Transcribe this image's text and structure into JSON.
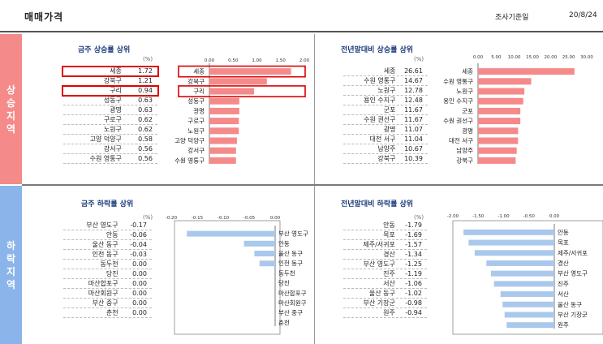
{
  "header": {
    "title": "매매가격",
    "date_label": "조사기준일",
    "date_value": "20/8/24"
  },
  "sections": {
    "rise": "상승지역",
    "fall": "하락지역"
  },
  "unit": "(%)",
  "chart_data": [
    {
      "id": "p1",
      "type": "bar",
      "title": "금주 상승률 상위",
      "categories": [
        "세종",
        "강북구",
        "구리",
        "성동구",
        "광명",
        "구로구",
        "노원구",
        "고양 덕양구",
        "강서구",
        "수원 영통구"
      ],
      "values": [
        1.72,
        1.21,
        0.94,
        0.63,
        0.63,
        0.62,
        0.62,
        0.58,
        0.56,
        0.56
      ],
      "value_labels": [
        "1.72",
        "1.21",
        "0.94",
        "0.63",
        "0.63",
        "0.62",
        "0.62",
        "0.58",
        "0.56",
        "0.56"
      ],
      "xlim": [
        0,
        2
      ],
      "xticks": [
        "0.00",
        "0.50",
        "1.00",
        "1.50",
        "2.00"
      ],
      "highlight": [
        0,
        2
      ],
      "color": "#f58a8a"
    },
    {
      "id": "p2",
      "type": "bar",
      "title": "전년말대비 상승률 상위",
      "categories": [
        "세종",
        "수원 영통구",
        "노원구",
        "용인 수지구",
        "군포",
        "수원 권선구",
        "광명",
        "대전 서구",
        "남양주",
        "강북구"
      ],
      "values": [
        26.61,
        14.67,
        12.78,
        12.48,
        11.67,
        11.67,
        11.07,
        11.04,
        10.67,
        10.39
      ],
      "value_labels": [
        "26.61",
        "14.67",
        "12.78",
        "12.48",
        "11.67",
        "11.67",
        "11.07",
        "11.04",
        "10.67",
        "10.39"
      ],
      "xlim": [
        0,
        30
      ],
      "xticks": [
        "0.00",
        "5.00",
        "10.00",
        "15.00",
        "20.00",
        "25.00",
        "30.00"
      ],
      "highlight": [],
      "color": "#f58a8a"
    },
    {
      "id": "p3",
      "type": "bar",
      "title": "금주 하락률 상위",
      "categories": [
        "부산 영도구",
        "안동",
        "울산 동구",
        "인천 동구",
        "동두천",
        "당진",
        "마산합포구",
        "마산회원구",
        "부산 중구",
        "춘천"
      ],
      "values": [
        -0.17,
        -0.06,
        -0.04,
        -0.03,
        0.0,
        0.0,
        0.0,
        0.0,
        0.0,
        0.0
      ],
      "value_labels": [
        "-0.17",
        "-0.06",
        "-0.04",
        "-0.03",
        "0.00",
        "0.00",
        "0.00",
        "0.00",
        "0.00",
        "0.00"
      ],
      "xlim": [
        -0.2,
        0
      ],
      "xticks": [
        "-0.20",
        "-0.15",
        "-0.10",
        "-0.05",
        "0.00"
      ],
      "highlight": [],
      "color": "#a9c8ec"
    },
    {
      "id": "p4",
      "type": "bar",
      "title": "전년말대비 하락률 상위",
      "categories": [
        "안동",
        "목포",
        "제주/서귀포",
        "경산",
        "부산 영도구",
        "진주",
        "서산",
        "울산 동구",
        "부산 기장군",
        "원주"
      ],
      "values": [
        -1.79,
        -1.69,
        -1.57,
        -1.34,
        -1.25,
        -1.19,
        -1.06,
        -1.02,
        -0.98,
        -0.94
      ],
      "value_labels": [
        "-1.79",
        "-1.69",
        "-1.57",
        "-1.34",
        "-1.25",
        "-1.19",
        "-1.06",
        "-1.02",
        "-0.98",
        "-0.94"
      ],
      "xlim": [
        -2,
        0
      ],
      "xticks": [
        "-2.00",
        "-1.50",
        "-1.00",
        "-0.50",
        "0.00"
      ],
      "highlight": [],
      "color": "#a9c8ec"
    }
  ]
}
